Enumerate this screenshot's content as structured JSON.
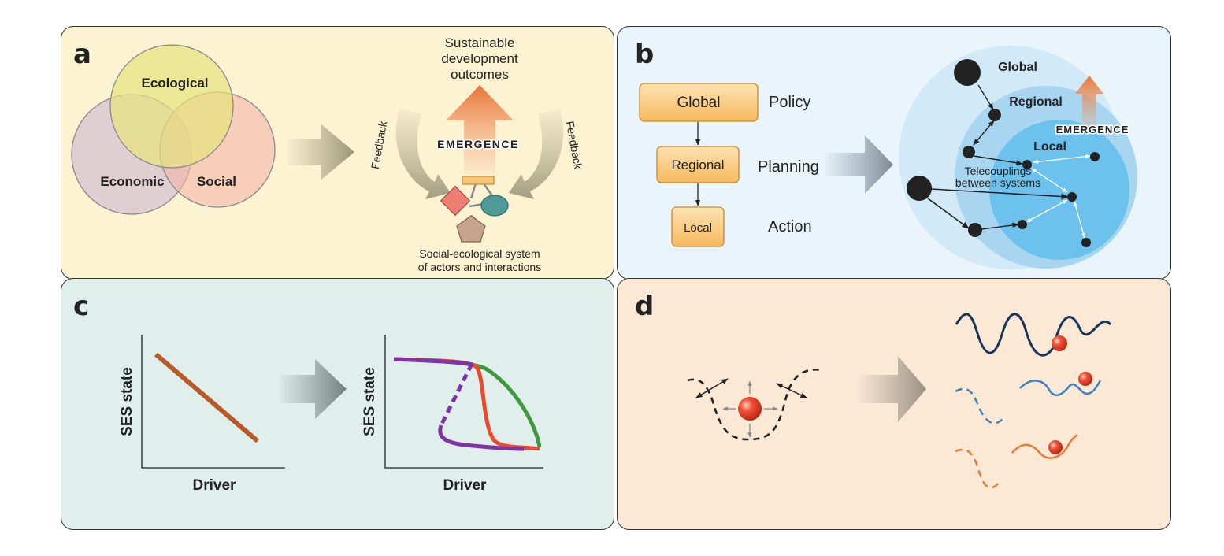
{
  "panel_labels": {
    "a": "a",
    "b": "b",
    "c": "c",
    "d": "d"
  },
  "panel_a": {
    "venn": {
      "ecological": "Ecological",
      "economic": "Economic",
      "social": "Social"
    },
    "outcome_lines": [
      "Sustainable",
      "development",
      "outcomes"
    ],
    "emergence": "EMERGENCE",
    "feedback_left": "Feedback",
    "feedback_right": "Feedback",
    "system_lines": [
      "Social-ecological system",
      "of actors and interactions"
    ]
  },
  "panel_b": {
    "levels": [
      {
        "box": "Global",
        "role": "Policy"
      },
      {
        "box": "Regional",
        "role": "Planning"
      },
      {
        "box": "Local",
        "role": "Action"
      }
    ],
    "scales": {
      "global": "Global",
      "regional": "Regional",
      "local": "Local"
    },
    "emergence": "EMERGENCE",
    "telecouplings": [
      "Telecouplings",
      "between systems"
    ]
  },
  "panel_c": {
    "left": {
      "ylabel": "SES state",
      "xlabel": "Driver"
    },
    "right": {
      "ylabel": "SES state",
      "xlabel": "Driver"
    }
  },
  "colors": {
    "ecological": "#3d9a3d",
    "economic": "#7b2d8e",
    "social": "#b5262a",
    "emergence": "#e8763a",
    "scale_blue": "#3b83c2",
    "line_brown": "#b85a2a",
    "line_red": "#ea4a2e",
    "line_green": "#3c9a3c",
    "line_purple": "#7f34a5",
    "well_navy": "#17365a",
    "well_blue": "#3b82c4",
    "well_orange": "#ec7a35"
  }
}
